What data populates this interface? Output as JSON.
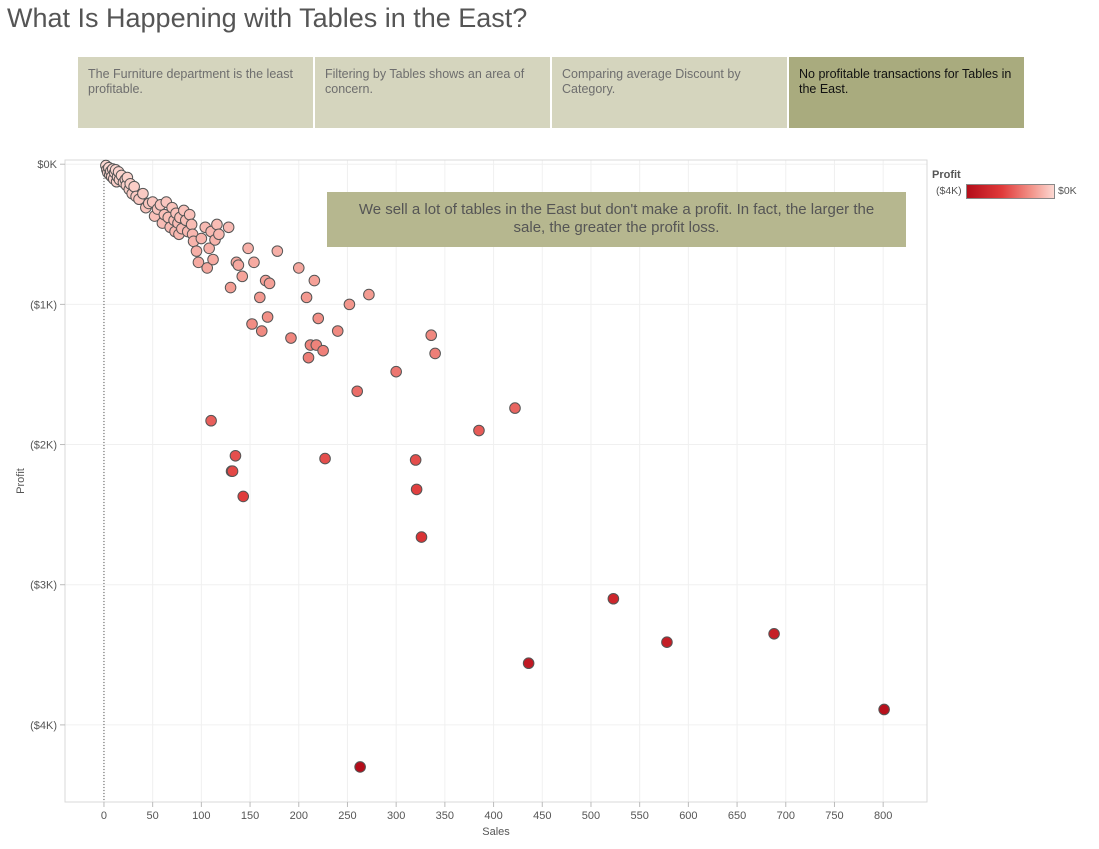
{
  "page": {
    "title": "What Is Happening with Tables in the East?"
  },
  "story_points": [
    {
      "text": "The Furniture department is the least profitable.",
      "active": false
    },
    {
      "text": "Filtering by Tables shows an area of concern.",
      "active": false
    },
    {
      "text": "Comparing average Discount by Category.",
      "active": false
    },
    {
      "text": "No profitable transactions for Tables in the East.",
      "active": true
    }
  ],
  "annotation": "We sell a lot of tables in the East but don't make a profit. In fact, the larger the sale, the greater the profit loss.",
  "legend": {
    "title": "Profit",
    "min_label": "($4K)",
    "max_label": "$0K",
    "colors": [
      "#b40d1a",
      "#e03a3a",
      "#f3968c",
      "#fcd8d2"
    ]
  },
  "chart_data": {
    "type": "scatter",
    "title": "",
    "xlabel": "Sales",
    "ylabel": "Profit",
    "xlim": [
      -40,
      845
    ],
    "ylim": [
      -4550,
      30
    ],
    "x_ticks": [
      0,
      50,
      100,
      150,
      200,
      250,
      300,
      350,
      400,
      450,
      500,
      550,
      600,
      650,
      700,
      750,
      800
    ],
    "x_tick_labels": [
      "0",
      "50",
      "100",
      "150",
      "200",
      "250",
      "300",
      "350",
      "400",
      "450",
      "500",
      "550",
      "600",
      "650",
      "700",
      "750",
      "800"
    ],
    "y_ticks": [
      0,
      -1000,
      -2000,
      -3000,
      -4000
    ],
    "y_tick_labels": [
      "$0K",
      "($1K)",
      "($2K)",
      "($3K)",
      "($4K)"
    ],
    "grid": true,
    "reference_line_x": 0,
    "point_color_scale": {
      "field": "Profit",
      "min": -4000,
      "max": 0
    },
    "points": [
      {
        "x": 2,
        "y": -10
      },
      {
        "x": 3,
        "y": -40
      },
      {
        "x": 4,
        "y": -60
      },
      {
        "x": 5,
        "y": -25
      },
      {
        "x": 6,
        "y": -75
      },
      {
        "x": 7,
        "y": -50
      },
      {
        "x": 8,
        "y": -90
      },
      {
        "x": 9,
        "y": -35
      },
      {
        "x": 10,
        "y": -105
      },
      {
        "x": 11,
        "y": -60
      },
      {
        "x": 12,
        "y": -40
      },
      {
        "x": 13,
        "y": -125
      },
      {
        "x": 14,
        "y": -90
      },
      {
        "x": 15,
        "y": -55
      },
      {
        "x": 16,
        "y": -110
      },
      {
        "x": 18,
        "y": -80
      },
      {
        "x": 20,
        "y": -130
      },
      {
        "x": 22,
        "y": -110
      },
      {
        "x": 23,
        "y": -150
      },
      {
        "x": 24,
        "y": -95
      },
      {
        "x": 26,
        "y": -180
      },
      {
        "x": 27,
        "y": -140
      },
      {
        "x": 29,
        "y": -210
      },
      {
        "x": 31,
        "y": -160
      },
      {
        "x": 33,
        "y": -230
      },
      {
        "x": 36,
        "y": -250
      },
      {
        "x": 40,
        "y": -210
      },
      {
        "x": 43,
        "y": -310
      },
      {
        "x": 46,
        "y": -280
      },
      {
        "x": 50,
        "y": -270
      },
      {
        "x": 52,
        "y": -370
      },
      {
        "x": 55,
        "y": -320
      },
      {
        "x": 58,
        "y": -290
      },
      {
        "x": 60,
        "y": -420
      },
      {
        "x": 62,
        "y": -360
      },
      {
        "x": 64,
        "y": -270
      },
      {
        "x": 66,
        "y": -380
      },
      {
        "x": 68,
        "y": -450
      },
      {
        "x": 70,
        "y": -310
      },
      {
        "x": 72,
        "y": -400
      },
      {
        "x": 73,
        "y": -480
      },
      {
        "x": 74,
        "y": -350
      },
      {
        "x": 76,
        "y": -420
      },
      {
        "x": 77,
        "y": -500
      },
      {
        "x": 78,
        "y": -380
      },
      {
        "x": 80,
        "y": -460
      },
      {
        "x": 82,
        "y": -330
      },
      {
        "x": 84,
        "y": -400
      },
      {
        "x": 86,
        "y": -480
      },
      {
        "x": 88,
        "y": -360
      },
      {
        "x": 90,
        "y": -430
      },
      {
        "x": 91,
        "y": -500
      },
      {
        "x": 92,
        "y": -550
      },
      {
        "x": 95,
        "y": -620
      },
      {
        "x": 97,
        "y": -700
      },
      {
        "x": 100,
        "y": -530
      },
      {
        "x": 104,
        "y": -450
      },
      {
        "x": 106,
        "y": -740
      },
      {
        "x": 108,
        "y": -600
      },
      {
        "x": 110,
        "y": -480
      },
      {
        "x": 112,
        "y": -680
      },
      {
        "x": 114,
        "y": -540
      },
      {
        "x": 116,
        "y": -430
      },
      {
        "x": 118,
        "y": -500
      },
      {
        "x": 128,
        "y": -450
      },
      {
        "x": 130,
        "y": -880
      },
      {
        "x": 136,
        "y": -700
      },
      {
        "x": 138,
        "y": -720
      },
      {
        "x": 142,
        "y": -800
      },
      {
        "x": 148,
        "y": -600
      },
      {
        "x": 152,
        "y": -1140
      },
      {
        "x": 154,
        "y": -700
      },
      {
        "x": 160,
        "y": -950
      },
      {
        "x": 162,
        "y": -1190
      },
      {
        "x": 166,
        "y": -830
      },
      {
        "x": 168,
        "y": -1090
      },
      {
        "x": 170,
        "y": -850
      },
      {
        "x": 178,
        "y": -620
      },
      {
        "x": 192,
        "y": -1240
      },
      {
        "x": 200,
        "y": -740
      },
      {
        "x": 208,
        "y": -950
      },
      {
        "x": 210,
        "y": -1380
      },
      {
        "x": 212,
        "y": -1290
      },
      {
        "x": 216,
        "y": -830
      },
      {
        "x": 218,
        "y": -1290
      },
      {
        "x": 220,
        "y": -1100
      },
      {
        "x": 225,
        "y": -1330
      },
      {
        "x": 240,
        "y": -1190
      },
      {
        "x": 252,
        "y": -1000
      },
      {
        "x": 272,
        "y": -930
      },
      {
        "x": 336,
        "y": -1220
      },
      {
        "x": 340,
        "y": -1350
      },
      {
        "x": 260,
        "y": -1620
      },
      {
        "x": 300,
        "y": -1480
      },
      {
        "x": 385,
        "y": -1900
      },
      {
        "x": 422,
        "y": -1740
      },
      {
        "x": 110,
        "y": -1830
      },
      {
        "x": 135,
        "y": -2080
      },
      {
        "x": 131,
        "y": -2190
      },
      {
        "x": 132,
        "y": -2190
      },
      {
        "x": 143,
        "y": -2370
      },
      {
        "x": 227,
        "y": -2100
      },
      {
        "x": 320,
        "y": -2110
      },
      {
        "x": 321,
        "y": -2320
      },
      {
        "x": 326,
        "y": -2660
      },
      {
        "x": 523,
        "y": -3100
      },
      {
        "x": 578,
        "y": -3410
      },
      {
        "x": 688,
        "y": -3350
      },
      {
        "x": 436,
        "y": -3560
      },
      {
        "x": 801,
        "y": -3890
      },
      {
        "x": 263,
        "y": -4300
      }
    ]
  }
}
